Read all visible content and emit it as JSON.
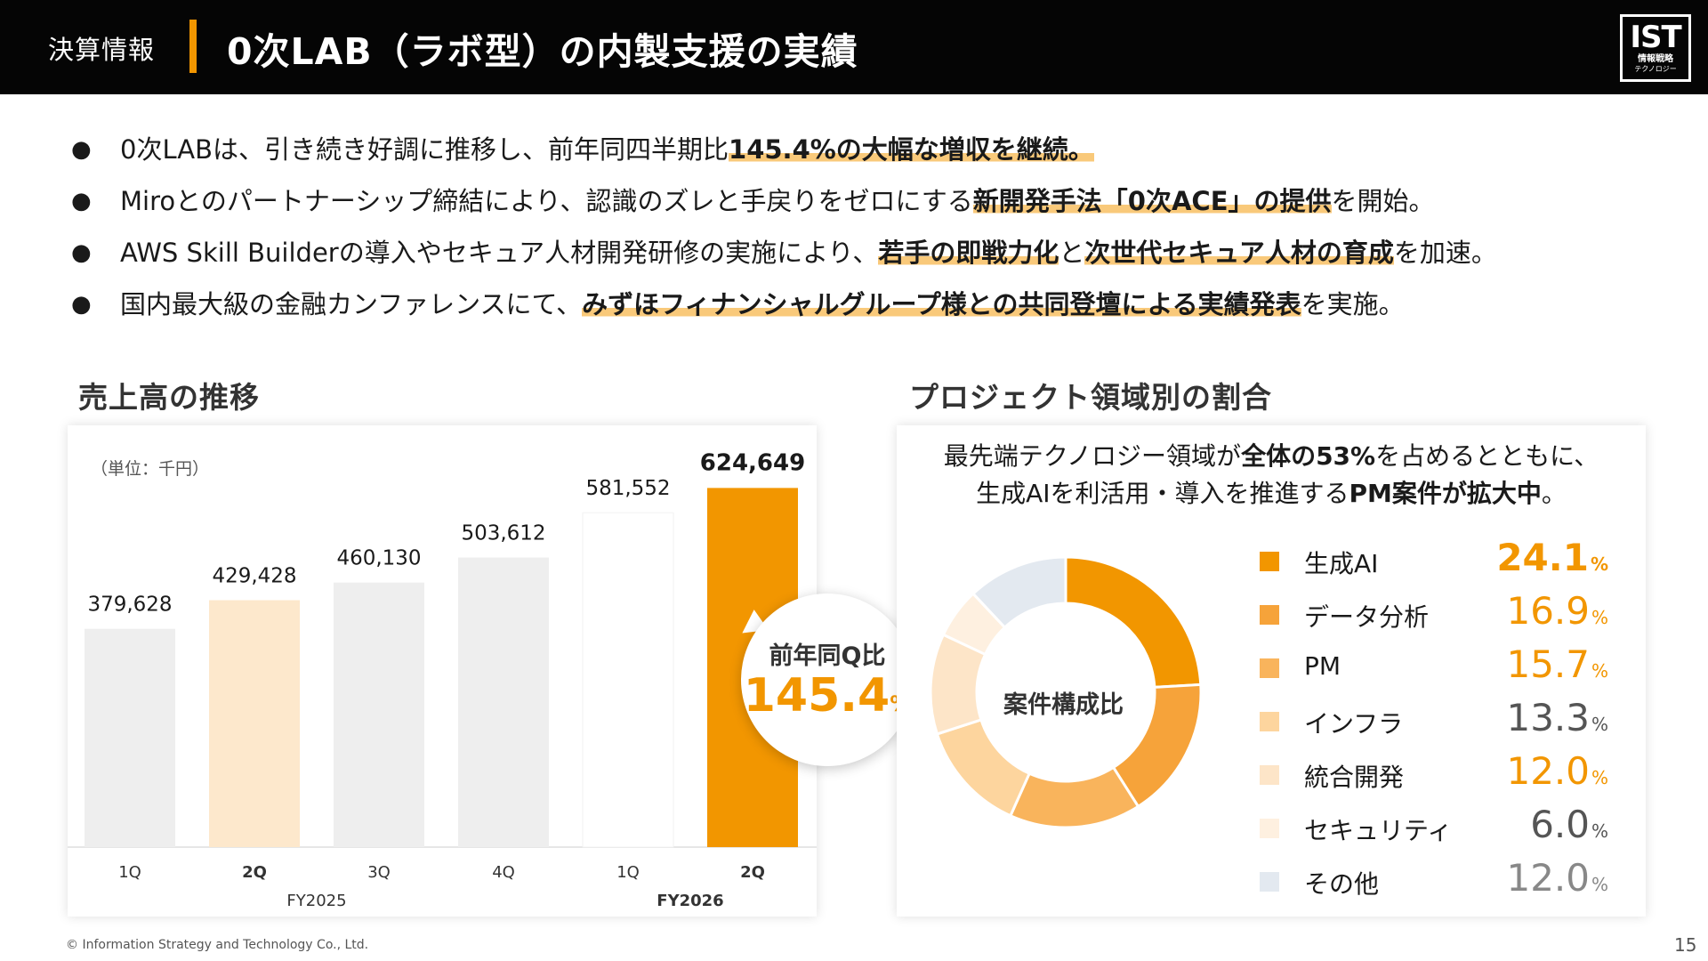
{
  "header": {
    "section": "決算情報",
    "title": "0次LAB（ラボ型）の内製支援の実績",
    "logo_main": "IST",
    "logo_sub1": "情報戦略",
    "logo_sub2": "テクノロジー",
    "accent_color": "#f29600"
  },
  "bullets": [
    {
      "before": "0次LABは、引き続き好調に推移し、前年同四半期比",
      "hl": "145.4%の大幅な増収を継続。",
      "mid": "",
      "hl2": "",
      "after": ""
    },
    {
      "before": "Miroとのパートナーシップ締結により、認識のズレと手戻りをゼロにする",
      "hl": "新開発手法「0次ACE」の提供",
      "mid": "",
      "hl2": "",
      "after": "を開始。"
    },
    {
      "before": "AWS Skill Builderの導入やセキュア人材開発研修の実施により、",
      "hl": "若手の即戦力化",
      "mid": "と",
      "hl2": "次世代セキュア人材の育成",
      "after": "を加速。"
    },
    {
      "before": "国内最大級の金融カンファレンスにて、",
      "hl": "みずほフィナンシャルグループ様との共同登壇による実績発表",
      "mid": "",
      "hl2": "",
      "after": "を実施。"
    }
  ],
  "sections": {
    "bar_title": "売上高の推移",
    "pie_title": "プロジェクト領域別の割合"
  },
  "bar_panel": {
    "unit": "（単位：千円）"
  },
  "bubble": {
    "label": "前年同Q比",
    "value": "145.4",
    "pct": "%"
  },
  "pie_panel": {
    "line1_a": "最先端テクノロジー領域が",
    "line1_b": "全体の53%",
    "line1_c": "を占めるとともに、",
    "line2_a": "生成AIを利活用・導入を推進する",
    "line2_b": "PM案件が拡大中",
    "line2_c": "。",
    "center": "案件構成比"
  },
  "chart_data": [
    {
      "type": "bar",
      "title": "売上高の推移",
      "unit": "（単位：千円）",
      "categories": [
        "1Q",
        "2Q",
        "3Q",
        "4Q",
        "1Q",
        "2Q"
      ],
      "groups": [
        "FY2025",
        "FY2026"
      ],
      "group_index": [
        0,
        0,
        0,
        0,
        1,
        1
      ],
      "values": [
        379628,
        429428,
        460130,
        503612,
        581552,
        624649
      ],
      "value_labels": [
        "379,628",
        "429,428",
        "460,130",
        "503,612",
        "581,552",
        "624,649"
      ],
      "colors": [
        "#eeeeee",
        "#fde8cc",
        "#eeeeee",
        "#eeeeee",
        "#ffffff",
        "#f29600"
      ],
      "bold": [
        false,
        true,
        false,
        false,
        false,
        true
      ],
      "ylim": [
        0,
        650000
      ]
    },
    {
      "type": "pie",
      "title": "プロジェクト領域別の割合",
      "center_label": "案件構成比",
      "categories": [
        "生成AI",
        "データ分析",
        "PM",
        "インフラ",
        "統合開発",
        "セキュリティ",
        "その他"
      ],
      "values": [
        24.1,
        16.9,
        15.7,
        13.3,
        12.0,
        6.0,
        12.0
      ],
      "value_labels": [
        "24.1",
        "16.9",
        "15.7",
        "13.3",
        "12.0",
        "6.0",
        "12.0"
      ],
      "pct": "%",
      "colors": [
        "#f29600",
        "#f6a33a",
        "#f9b45c",
        "#fdd59e",
        "#fde5c8",
        "#fef0e0",
        "#e3e9f0"
      ],
      "value_colors": [
        "#f29600",
        "#f29600",
        "#f29600",
        "#555555",
        "#f29600",
        "#555555",
        "#888888"
      ]
    }
  ],
  "footer": {
    "copyright": "© Information Strategy and Technology Co., Ltd.",
    "page": "15"
  }
}
